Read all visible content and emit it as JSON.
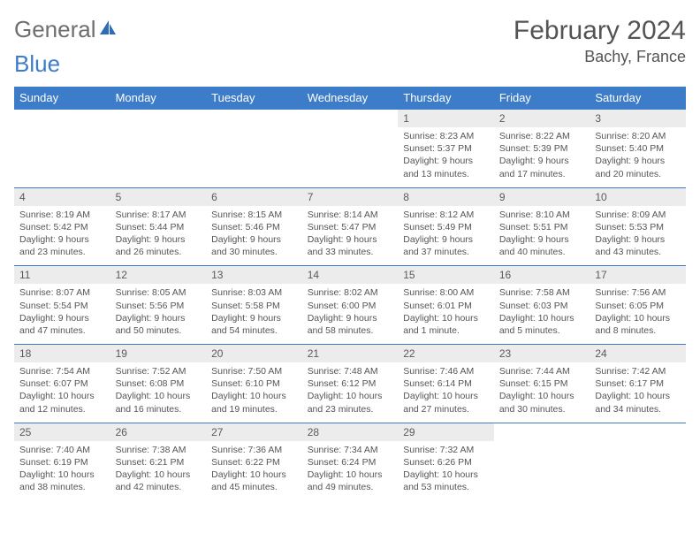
{
  "logo": {
    "part1": "General",
    "part2": "Blue"
  },
  "title": "February 2024",
  "location": "Bachy, France",
  "colors": {
    "header_bg": "#3d7cc9",
    "header_text": "#ffffff",
    "daynum_bg": "#ececec",
    "border": "#3d7cc9",
    "text": "#555555"
  },
  "daynames": [
    "Sunday",
    "Monday",
    "Tuesday",
    "Wednesday",
    "Thursday",
    "Friday",
    "Saturday"
  ],
  "weeks": [
    [
      null,
      null,
      null,
      null,
      {
        "n": "1",
        "sr": "8:23 AM",
        "ss": "5:37 PM",
        "dl": "9 hours and 13 minutes."
      },
      {
        "n": "2",
        "sr": "8:22 AM",
        "ss": "5:39 PM",
        "dl": "9 hours and 17 minutes."
      },
      {
        "n": "3",
        "sr": "8:20 AM",
        "ss": "5:40 PM",
        "dl": "9 hours and 20 minutes."
      }
    ],
    [
      {
        "n": "4",
        "sr": "8:19 AM",
        "ss": "5:42 PM",
        "dl": "9 hours and 23 minutes."
      },
      {
        "n": "5",
        "sr": "8:17 AM",
        "ss": "5:44 PM",
        "dl": "9 hours and 26 minutes."
      },
      {
        "n": "6",
        "sr": "8:15 AM",
        "ss": "5:46 PM",
        "dl": "9 hours and 30 minutes."
      },
      {
        "n": "7",
        "sr": "8:14 AM",
        "ss": "5:47 PM",
        "dl": "9 hours and 33 minutes."
      },
      {
        "n": "8",
        "sr": "8:12 AM",
        "ss": "5:49 PM",
        "dl": "9 hours and 37 minutes."
      },
      {
        "n": "9",
        "sr": "8:10 AM",
        "ss": "5:51 PM",
        "dl": "9 hours and 40 minutes."
      },
      {
        "n": "10",
        "sr": "8:09 AM",
        "ss": "5:53 PM",
        "dl": "9 hours and 43 minutes."
      }
    ],
    [
      {
        "n": "11",
        "sr": "8:07 AM",
        "ss": "5:54 PM",
        "dl": "9 hours and 47 minutes."
      },
      {
        "n": "12",
        "sr": "8:05 AM",
        "ss": "5:56 PM",
        "dl": "9 hours and 50 minutes."
      },
      {
        "n": "13",
        "sr": "8:03 AM",
        "ss": "5:58 PM",
        "dl": "9 hours and 54 minutes."
      },
      {
        "n": "14",
        "sr": "8:02 AM",
        "ss": "6:00 PM",
        "dl": "9 hours and 58 minutes."
      },
      {
        "n": "15",
        "sr": "8:00 AM",
        "ss": "6:01 PM",
        "dl": "10 hours and 1 minute."
      },
      {
        "n": "16",
        "sr": "7:58 AM",
        "ss": "6:03 PM",
        "dl": "10 hours and 5 minutes."
      },
      {
        "n": "17",
        "sr": "7:56 AM",
        "ss": "6:05 PM",
        "dl": "10 hours and 8 minutes."
      }
    ],
    [
      {
        "n": "18",
        "sr": "7:54 AM",
        "ss": "6:07 PM",
        "dl": "10 hours and 12 minutes."
      },
      {
        "n": "19",
        "sr": "7:52 AM",
        "ss": "6:08 PM",
        "dl": "10 hours and 16 minutes."
      },
      {
        "n": "20",
        "sr": "7:50 AM",
        "ss": "6:10 PM",
        "dl": "10 hours and 19 minutes."
      },
      {
        "n": "21",
        "sr": "7:48 AM",
        "ss": "6:12 PM",
        "dl": "10 hours and 23 minutes."
      },
      {
        "n": "22",
        "sr": "7:46 AM",
        "ss": "6:14 PM",
        "dl": "10 hours and 27 minutes."
      },
      {
        "n": "23",
        "sr": "7:44 AM",
        "ss": "6:15 PM",
        "dl": "10 hours and 30 minutes."
      },
      {
        "n": "24",
        "sr": "7:42 AM",
        "ss": "6:17 PM",
        "dl": "10 hours and 34 minutes."
      }
    ],
    [
      {
        "n": "25",
        "sr": "7:40 AM",
        "ss": "6:19 PM",
        "dl": "10 hours and 38 minutes."
      },
      {
        "n": "26",
        "sr": "7:38 AM",
        "ss": "6:21 PM",
        "dl": "10 hours and 42 minutes."
      },
      {
        "n": "27",
        "sr": "7:36 AM",
        "ss": "6:22 PM",
        "dl": "10 hours and 45 minutes."
      },
      {
        "n": "28",
        "sr": "7:34 AM",
        "ss": "6:24 PM",
        "dl": "10 hours and 49 minutes."
      },
      {
        "n": "29",
        "sr": "7:32 AM",
        "ss": "6:26 PM",
        "dl": "10 hours and 53 minutes."
      },
      null,
      null
    ]
  ]
}
